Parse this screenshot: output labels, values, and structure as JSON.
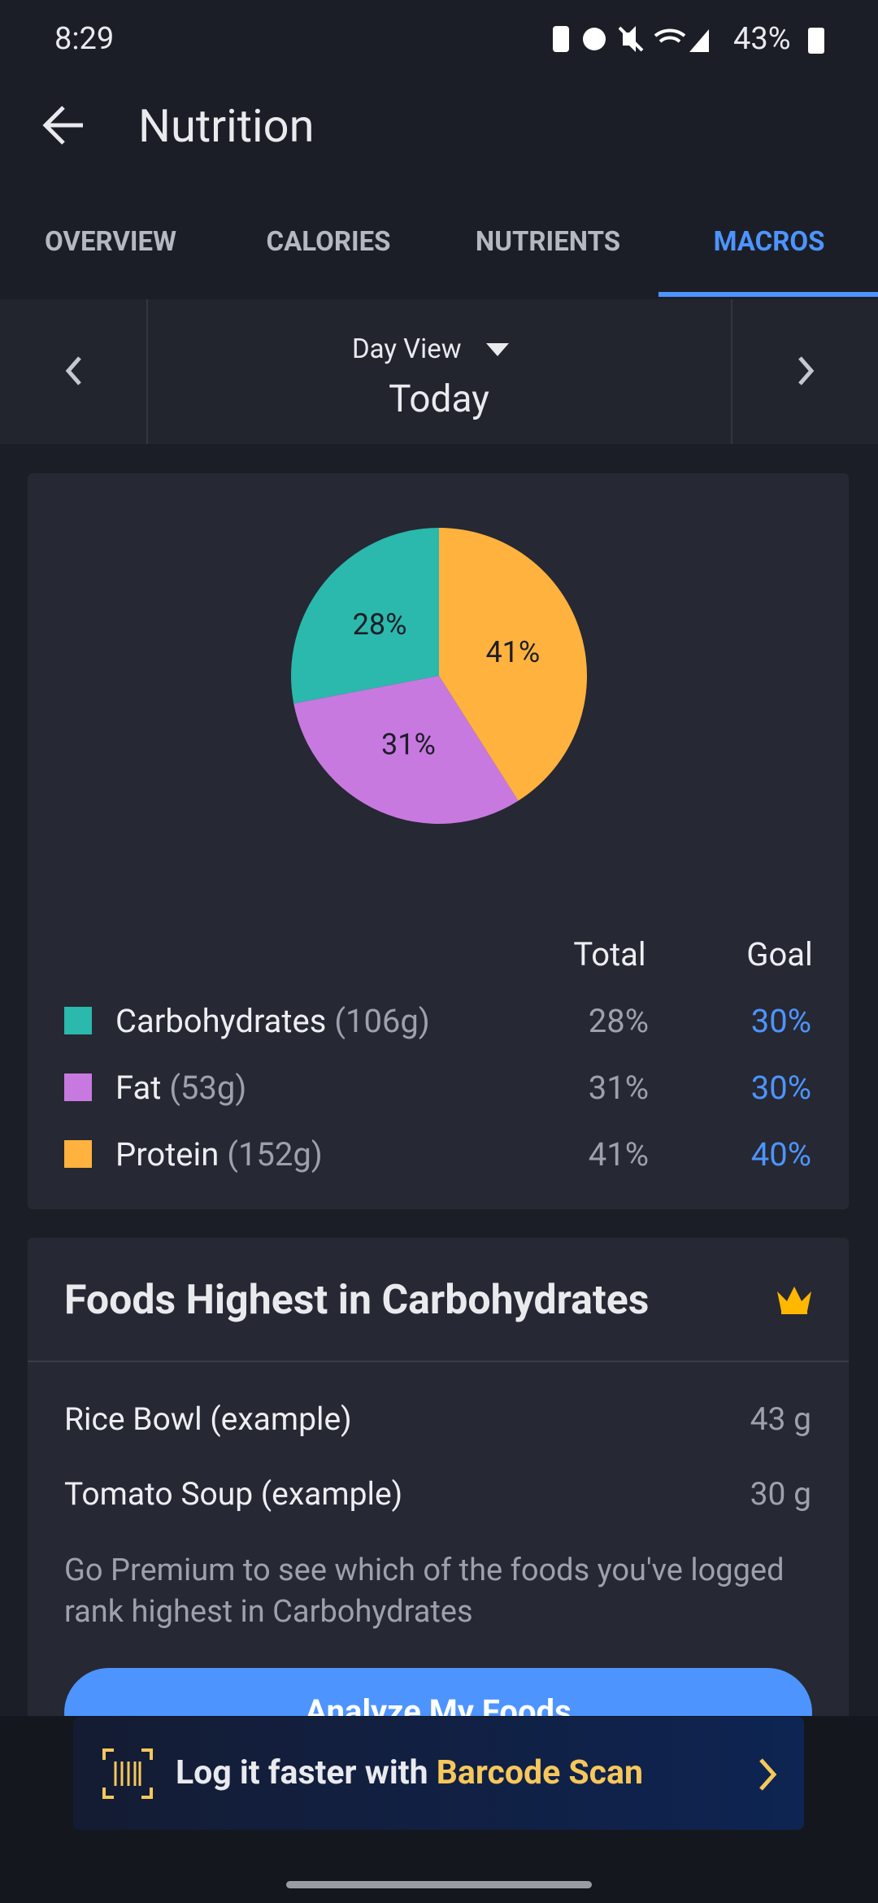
{
  "status_bar": {
    "time": "8:29",
    "battery": "43%"
  },
  "header": {
    "title": "Nutrition"
  },
  "tabs": [
    "OVERVIEW",
    "CALORIES",
    "NUTRIENTS",
    "MACROS"
  ],
  "active_tab": 3,
  "date_nav": {
    "view": "Day View",
    "date": "Today"
  },
  "macros": {
    "pie": {
      "values": [
        28,
        31,
        41
      ],
      "value_labels": [
        "28%",
        "31%",
        "41%"
      ],
      "colors": [
        "#2bb8ad",
        "#c879e0",
        "#ffb23d"
      ]
    },
    "headers": [
      "Total",
      "Goal"
    ],
    "rows": [
      {
        "name": "Carbohydrates",
        "amount": "(106g)",
        "goal": "30%"
      },
      {
        "name": "Fat",
        "amount": "(53g)",
        "goal": "30%"
      },
      {
        "name": "Protein",
        "amount": "(152g)",
        "goal": "40%"
      }
    ]
  },
  "foods": {
    "title": "Foods Highest in Carbohydrates",
    "items": [
      {
        "name": "Rice Bowl (example)",
        "amount": "43 g"
      },
      {
        "name": "Tomato Soup (example)",
        "amount": "30 g"
      }
    ],
    "note": "Go Premium to see which of the foods you've logged rank highest in Carbohydrates",
    "button": "Analyze My Foods"
  },
  "banner": {
    "text": "Log it faster with",
    "highlight": "Barcode Scan"
  }
}
